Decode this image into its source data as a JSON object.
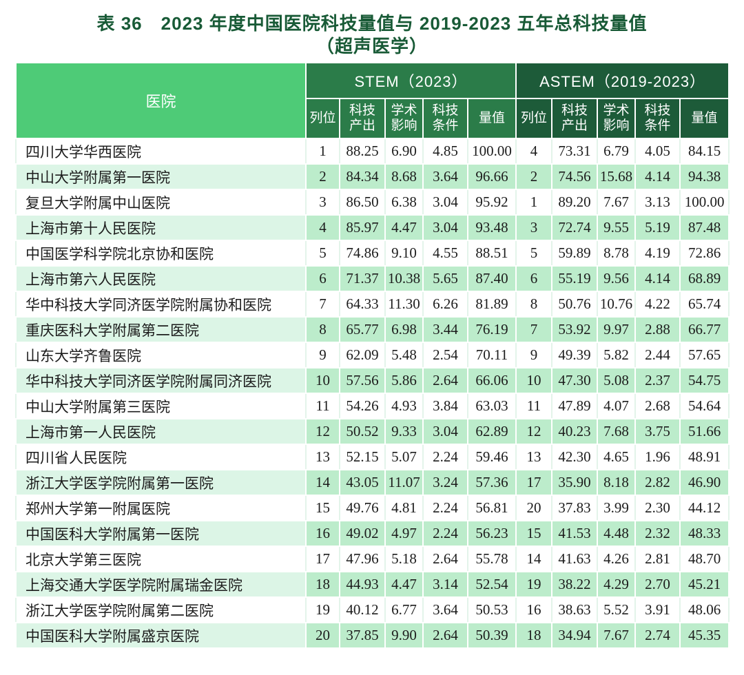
{
  "title": {
    "line1": "表 36　2023 年度中国医院科技量值与 2019-2023 五年总科技量值",
    "line2": "（超声医学）"
  },
  "colors": {
    "title_text": "#185a36",
    "hospital_header_bg": "#4ecb77",
    "stem_band_bg": "#2b7c49",
    "astem_band_bg": "#1d5b39",
    "even_row_hospital_bg": "#dcf5e6",
    "even_row_value_bg": "#bceccb",
    "odd_row_bg": "#ffffff"
  },
  "table": {
    "hospital_header": "医院",
    "groups": [
      {
        "label": "STEM（2023）",
        "columns": [
          "列位",
          "科技产出",
          "学术影响",
          "科技条件",
          "量值"
        ]
      },
      {
        "label": "ASTEM（2019-2023）",
        "columns": [
          "列位",
          "科技产出",
          "学术影响",
          "科技条件",
          "量值"
        ]
      }
    ],
    "rows": [
      {
        "hospital": "四川大学华西医院",
        "stem": [
          "1",
          "88.25",
          "6.90",
          "4.85",
          "100.00"
        ],
        "astem": [
          "4",
          "73.31",
          "6.79",
          "4.05",
          "84.15"
        ]
      },
      {
        "hospital": "中山大学附属第一医院",
        "stem": [
          "2",
          "84.34",
          "8.68",
          "3.64",
          "96.66"
        ],
        "astem": [
          "2",
          "74.56",
          "15.68",
          "4.14",
          "94.38"
        ]
      },
      {
        "hospital": "复旦大学附属中山医院",
        "stem": [
          "3",
          "86.50",
          "6.38",
          "3.04",
          "95.92"
        ],
        "astem": [
          "1",
          "89.20",
          "7.67",
          "3.13",
          "100.00"
        ]
      },
      {
        "hospital": "上海市第十人民医院",
        "stem": [
          "4",
          "85.97",
          "4.47",
          "3.04",
          "93.48"
        ],
        "astem": [
          "3",
          "72.74",
          "9.55",
          "5.19",
          "87.48"
        ]
      },
      {
        "hospital": "中国医学科学院北京协和医院",
        "stem": [
          "5",
          "74.86",
          "9.10",
          "4.55",
          "88.51"
        ],
        "astem": [
          "5",
          "59.89",
          "8.78",
          "4.19",
          "72.86"
        ]
      },
      {
        "hospital": "上海市第六人民医院",
        "stem": [
          "6",
          "71.37",
          "10.38",
          "5.65",
          "87.40"
        ],
        "astem": [
          "6",
          "55.19",
          "9.56",
          "4.14",
          "68.89"
        ]
      },
      {
        "hospital": "华中科技大学同济医学院附属协和医院",
        "stem": [
          "7",
          "64.33",
          "11.30",
          "6.26",
          "81.89"
        ],
        "astem": [
          "8",
          "50.76",
          "10.76",
          "4.22",
          "65.74"
        ]
      },
      {
        "hospital": "重庆医科大学附属第二医院",
        "stem": [
          "8",
          "65.77",
          "6.98",
          "3.44",
          "76.19"
        ],
        "astem": [
          "7",
          "53.92",
          "9.97",
          "2.88",
          "66.77"
        ]
      },
      {
        "hospital": "山东大学齐鲁医院",
        "stem": [
          "9",
          "62.09",
          "5.48",
          "2.54",
          "70.11"
        ],
        "astem": [
          "9",
          "49.39",
          "5.82",
          "2.44",
          "57.65"
        ]
      },
      {
        "hospital": "华中科技大学同济医学院附属同济医院",
        "stem": [
          "10",
          "57.56",
          "5.86",
          "2.64",
          "66.06"
        ],
        "astem": [
          "10",
          "47.30",
          "5.08",
          "2.37",
          "54.75"
        ]
      },
      {
        "hospital": "中山大学附属第三医院",
        "stem": [
          "11",
          "54.26",
          "4.93",
          "3.84",
          "63.03"
        ],
        "astem": [
          "11",
          "47.89",
          "4.07",
          "2.68",
          "54.64"
        ]
      },
      {
        "hospital": "上海市第一人民医院",
        "stem": [
          "12",
          "50.52",
          "9.33",
          "3.04",
          "62.89"
        ],
        "astem": [
          "12",
          "40.23",
          "7.68",
          "3.75",
          "51.66"
        ]
      },
      {
        "hospital": "四川省人民医院",
        "stem": [
          "13",
          "52.15",
          "5.07",
          "2.24",
          "59.46"
        ],
        "astem": [
          "13",
          "42.30",
          "4.65",
          "1.96",
          "48.91"
        ]
      },
      {
        "hospital": "浙江大学医学院附属第一医院",
        "stem": [
          "14",
          "43.05",
          "11.07",
          "3.24",
          "57.36"
        ],
        "astem": [
          "17",
          "35.90",
          "8.18",
          "2.82",
          "46.90"
        ]
      },
      {
        "hospital": "郑州大学第一附属医院",
        "stem": [
          "15",
          "49.76",
          "4.81",
          "2.24",
          "56.81"
        ],
        "astem": [
          "20",
          "37.83",
          "3.99",
          "2.30",
          "44.12"
        ]
      },
      {
        "hospital": "中国医科大学附属第一医院",
        "stem": [
          "16",
          "49.02",
          "4.97",
          "2.24",
          "56.23"
        ],
        "astem": [
          "15",
          "41.53",
          "4.48",
          "2.32",
          "48.33"
        ]
      },
      {
        "hospital": "北京大学第三医院",
        "stem": [
          "17",
          "47.96",
          "5.18",
          "2.64",
          "55.78"
        ],
        "astem": [
          "14",
          "41.63",
          "4.26",
          "2.81",
          "48.70"
        ]
      },
      {
        "hospital": "上海交通大学医学院附属瑞金医院",
        "stem": [
          "18",
          "44.93",
          "4.47",
          "3.14",
          "52.54"
        ],
        "astem": [
          "19",
          "38.22",
          "4.29",
          "2.70",
          "45.21"
        ]
      },
      {
        "hospital": "浙江大学医学院附属第二医院",
        "stem": [
          "19",
          "40.12",
          "6.77",
          "3.64",
          "50.53"
        ],
        "astem": [
          "16",
          "38.63",
          "5.52",
          "3.91",
          "48.06"
        ]
      },
      {
        "hospital": "中国医科大学附属盛京医院",
        "stem": [
          "20",
          "37.85",
          "9.90",
          "2.64",
          "50.39"
        ],
        "astem": [
          "18",
          "34.94",
          "7.67",
          "2.74",
          "45.35"
        ]
      }
    ]
  }
}
